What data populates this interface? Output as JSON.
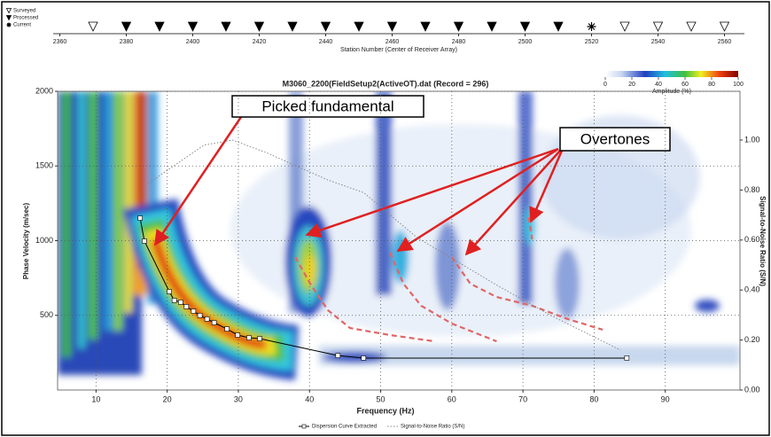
{
  "chart_data": [
    {
      "type": "station-strip",
      "x_label": "Station Number (Center of Receiver Array)",
      "xlim": [
        2358,
        2566
      ],
      "xticks": [
        2360,
        2380,
        2400,
        2420,
        2440,
        2460,
        2480,
        2500,
        2520,
        2540,
        2560
      ],
      "series": [
        {
          "name": "Surveyed",
          "marker": "hollow-triangle",
          "values": [
            2370,
            2530,
            2540,
            2550,
            2560
          ]
        },
        {
          "name": "Processed",
          "marker": "filled-triangle",
          "values": [
            2380,
            2390,
            2400,
            2410,
            2420,
            2430,
            2440,
            2450,
            2460,
            2470,
            2480,
            2490,
            2500,
            2510
          ]
        },
        {
          "name": "Current",
          "marker": "star",
          "values": [
            2520
          ]
        }
      ]
    },
    {
      "type": "colorbar",
      "x_label": "Amplitude (%)",
      "xlim": [
        0,
        100
      ],
      "xticks": [
        0,
        20,
        40,
        60,
        80,
        100
      ]
    },
    {
      "type": "line",
      "title": "M3060_2200(FieldSetup2(ActiveOT).dat (Record = 296)",
      "x_label": "Frequency (Hz)",
      "y_label": "Phase Velocity (m/sec)",
      "y2_label": "Signal-to-Noise Ratio (S/N)",
      "xlim": [
        4.6,
        100.5
      ],
      "xticks": [
        10,
        20,
        30,
        40,
        50,
        60,
        70,
        80,
        90
      ],
      "ylim": [
        0,
        2000
      ],
      "yticks": [
        500,
        1000,
        1500,
        2000
      ],
      "y2lim": [
        0,
        1.195
      ],
      "y2ticks": [
        {
          "value": 0,
          "label": "0.00"
        },
        {
          "value": 0.2,
          "label": "0.20"
        },
        {
          "value": 0.4,
          "label": "0.40"
        },
        {
          "value": 0.6,
          "label": "0.60"
        },
        {
          "value": 0.8,
          "label": "0.80"
        },
        {
          "value": 1,
          "label": "1.00"
        }
      ],
      "grid": true,
      "series": [
        {
          "name": "Dispersion Curve Extracted",
          "color": "#000000",
          "marker": "square",
          "x": [
            16.2,
            16.8,
            20.3,
            21.0,
            21.9,
            22.7,
            23.7,
            24.6,
            25.6,
            26.6,
            28.4,
            29.9,
            31.5,
            33.0,
            44.0,
            47.6,
            84.6
          ],
          "values": [
            1151,
            997,
            659,
            600,
            588,
            558,
            528,
            499,
            475,
            451,
            409,
            368,
            350,
            344,
            231,
            214,
            214
          ]
        },
        {
          "name": "Signal-to-Noise Ratio (S/N)",
          "color": "#888888",
          "style": "dotted",
          "axis": "y2",
          "x": [
            17.0,
            25.2,
            29.2,
            33.9,
            42.6,
            47.6,
            55.1,
            66.3,
            73.8,
            83.7
          ],
          "values": [
            0.82,
            0.98,
            1.0,
            0.95,
            0.84,
            0.79,
            0.61,
            0.42,
            0.3,
            0.16
          ]
        },
        {
          "color": "#e06666",
          "style": "dashed",
          "x": [
            38.0,
            40.1,
            42.6,
            45.7,
            51.3,
            57.6
          ],
          "values": [
            890,
            712,
            534,
            415,
            368,
            326
          ]
        },
        {
          "color": "#e06666",
          "style": "dashed",
          "x": [
            51.3,
            53.2,
            55.7,
            60.0,
            66.3
          ],
          "values": [
            920,
            712,
            564,
            445,
            326
          ]
        },
        {
          "color": "#e06666",
          "style": "dashed",
          "x": [
            60.0,
            62.6,
            66.3,
            71.3,
            76.3,
            81.2
          ],
          "values": [
            890,
            712,
            623,
            564,
            475,
            404
          ]
        },
        {
          "color": "#e06666",
          "style": "dashed",
          "x": [
            70.8,
            71.3
          ],
          "values": [
            1157,
            1009
          ]
        }
      ],
      "annotations": [
        "Picked fundamental",
        "Overtones"
      ]
    }
  ]
}
